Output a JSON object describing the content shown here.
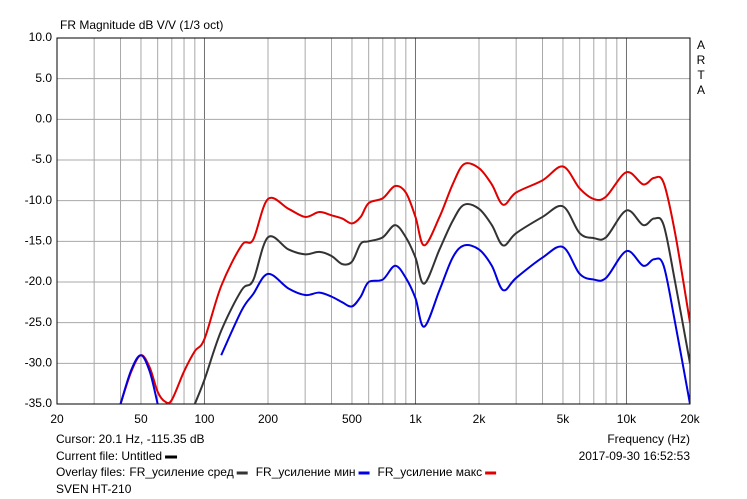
{
  "chart_data": {
    "type": "line",
    "title": "FR Magnitude dB V/V (1/3 oct)",
    "brand": "ARTA",
    "xlabel": "Frequency (Hz)",
    "log_x": true,
    "grid": true,
    "xlim": [
      20,
      20000
    ],
    "ylim": [
      -35,
      10
    ],
    "xticks": [
      20,
      50,
      100,
      200,
      500,
      {
        "value": 1000,
        "label": "1k"
      },
      {
        "value": 2000,
        "label": "2k"
      },
      {
        "value": 5000,
        "label": "5k"
      },
      {
        "value": 10000,
        "label": "10k"
      },
      {
        "value": 20000,
        "label": "20k"
      }
    ],
    "xgrid": [
      30,
      40,
      60,
      70,
      80,
      90,
      300,
      400,
      600,
      700,
      800,
      900,
      3000,
      4000,
      6000,
      7000,
      8000,
      9000
    ],
    "yticks": [
      {
        "value": 10,
        "label": "10.0"
      },
      {
        "value": 5,
        "label": "5.0"
      },
      {
        "value": 0,
        "label": "0.0"
      },
      {
        "value": -5,
        "label": "-5.0"
      },
      {
        "value": -10,
        "label": "-10.0"
      },
      {
        "value": -15,
        "label": "-15.0"
      },
      {
        "value": -20,
        "label": "-20.0"
      },
      {
        "value": -25,
        "label": "-25.0"
      },
      {
        "value": -30,
        "label": "-30.0"
      },
      {
        "value": -35,
        "label": "-35.0"
      }
    ],
    "x": [
      40,
      45,
      50,
      55,
      60,
      65,
      70,
      80,
      90,
      100,
      120,
      150,
      170,
      200,
      250,
      300,
      350,
      400,
      450,
      500,
      550,
      600,
      700,
      800,
      900,
      1000,
      1100,
      1300,
      1500,
      1700,
      2000,
      2300,
      2600,
      3000,
      4000,
      5000,
      6000,
      7000,
      8000,
      10000,
      12000,
      13500,
      15000,
      17000,
      20000
    ],
    "cursor": "Cursor: 20.1 Hz, -115.35 dB",
    "current_file": "Current file: Untitled",
    "current_file_color": "#000000",
    "timestamp": "2017-09-30  16:52:53",
    "legend_title": "Overlay files:",
    "device": "SVEN HT-210",
    "series": [
      {
        "name": "FR_усиление сред",
        "color": "#333333",
        "values": [
          null,
          null,
          null,
          null,
          null,
          null,
          null,
          null,
          -35,
          -32,
          -26,
          -21,
          -19.8,
          -14.5,
          -16,
          -16.6,
          -16.3,
          -16.8,
          -17.8,
          -17.5,
          -15.3,
          -15,
          -14.5,
          -13,
          -14.5,
          -17,
          -20.2,
          -16,
          -12.5,
          -10.5,
          -11,
          -13,
          -15.5,
          -14,
          -12,
          -10.7,
          -14,
          -14.6,
          -14.5,
          -11.2,
          -13,
          -12.2,
          -13,
          -20,
          -30
        ]
      },
      {
        "name": "FR_усиление мин",
        "color": "#0000e0",
        "values": [
          -35,
          -30.8,
          -29,
          -31,
          -35,
          null,
          null,
          null,
          null,
          null,
          -29,
          -23.5,
          -21.5,
          -19,
          -20.8,
          -21.6,
          -21.3,
          -21.8,
          -22.5,
          -23,
          -21.8,
          -20,
          -19.7,
          -18,
          -19.5,
          -22,
          -25.5,
          -21,
          -17,
          -15.5,
          -16,
          -18,
          -21,
          -19.5,
          -17,
          -15.7,
          -19,
          -19.7,
          -19.5,
          -16.2,
          -18,
          -17.2,
          -18,
          -25,
          -35
        ]
      },
      {
        "name": "FR_усиление макс",
        "color": "#e00000",
        "values": [
          -35,
          -31,
          -29,
          -30.5,
          -33.5,
          -34.7,
          -34.5,
          -31,
          -28.5,
          -27,
          -20.5,
          -15.5,
          -14.8,
          -9.8,
          -11,
          -12,
          -11.4,
          -11.8,
          -12.2,
          -12.8,
          -12,
          -10.3,
          -9.7,
          -8.2,
          -9,
          -12,
          -15.5,
          -12,
          -8,
          -5.5,
          -6,
          -8,
          -10.5,
          -9,
          -7.5,
          -5.8,
          -8.5,
          -9.8,
          -9.5,
          -6.5,
          -8,
          -7.2,
          -7.8,
          -14,
          -25
        ]
      }
    ]
  }
}
